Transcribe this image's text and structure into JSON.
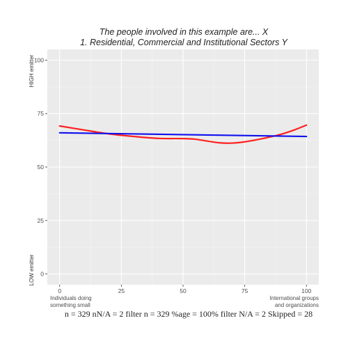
{
  "chart_data": {
    "type": "line",
    "title_lines": [
      "The people involved in this example are... X",
      "1. Residential, Commercial and Institutional Sectors Y"
    ],
    "xlim": [
      -5,
      105
    ],
    "ylim": [
      -5,
      105
    ],
    "x_ticks": [
      0,
      25,
      50,
      75,
      100
    ],
    "y_ticks": [
      0,
      25,
      50,
      75,
      100
    ],
    "x_end_labels": {
      "left": [
        "Individuals doing",
        "something small"
      ],
      "right": [
        "International groups",
        "and organizations"
      ]
    },
    "y_end_labels": {
      "bottom": "LOW emitter",
      "top": "HIGH emitter"
    },
    "grid": true,
    "series": [
      {
        "color": "#ff2020",
        "x": [
          0,
          10,
          20,
          30,
          40,
          50,
          55,
          60,
          65,
          70,
          75,
          80,
          85,
          90,
          95,
          100
        ],
        "y": [
          69.2,
          67.3,
          65.5,
          64.3,
          63.4,
          63.3,
          63.0,
          62.1,
          61.3,
          61.2,
          61.8,
          62.8,
          64.0,
          65.4,
          67.3,
          69.6
        ]
      },
      {
        "color": "#1010ee",
        "x": [
          0,
          100
        ],
        "y": [
          66.0,
          64.3
        ]
      }
    ],
    "footer": "n = 329  nN/A = 2  filter n = 329  %age = 100%  filter N/A = 2  Skipped =  28"
  }
}
